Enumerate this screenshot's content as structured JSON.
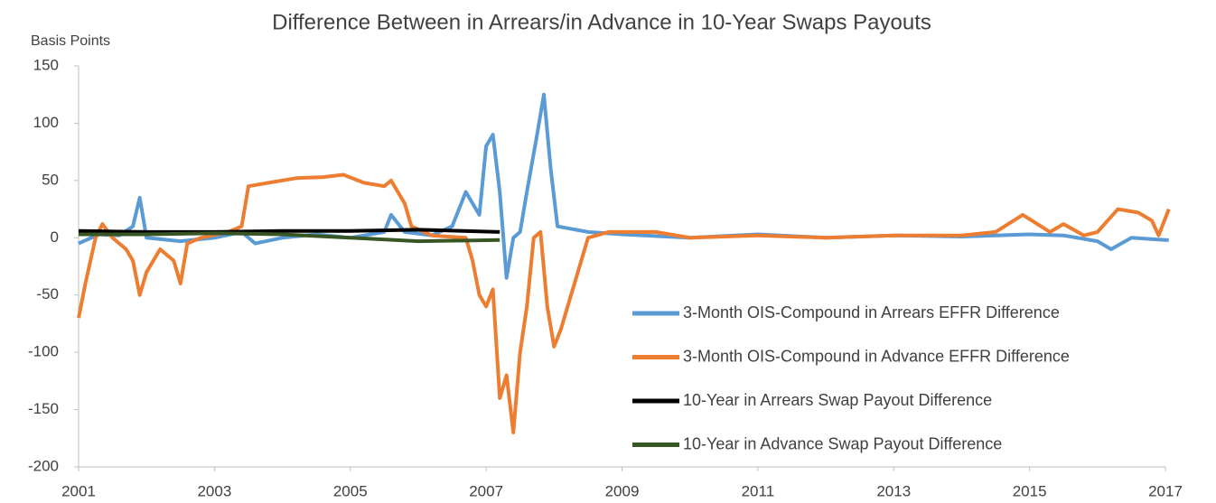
{
  "chart_data": {
    "type": "line",
    "title": "Difference Between in Arrears/in Advance in 10-Year Swaps Payouts",
    "y_label": "Basis Points",
    "xlim": [
      2001,
      2017
    ],
    "xticks": [
      2001,
      2003,
      2005,
      2007,
      2009,
      2011,
      2013,
      2015,
      2017
    ],
    "ylim": [
      -200,
      150
    ],
    "yticks": [
      -200,
      -150,
      -100,
      -50,
      0,
      50,
      100,
      150
    ],
    "grid": false,
    "legend": "lower right",
    "series": [
      {
        "name": "3-Month OIS-Compound in Arrears EFFR Difference",
        "color": "#5b9bd5",
        "x": [
          2001.0,
          2001.3,
          2001.6,
          2001.8,
          2001.9,
          2002.0,
          2002.5,
          2003.0,
          2003.4,
          2003.6,
          2004.0,
          2004.5,
          2005.0,
          2005.5,
          2005.6,
          2005.8,
          2006.2,
          2006.5,
          2006.7,
          2006.9,
          2007.0,
          2007.1,
          2007.2,
          2007.3,
          2007.4,
          2007.5,
          2007.6,
          2007.75,
          2007.85,
          2007.95,
          2008.05,
          2008.5,
          2009.0,
          2010.0,
          2011.0,
          2012.0,
          2013.0,
          2014.0,
          2015.0,
          2015.5,
          2016.0,
          2016.2,
          2016.5,
          2017.0,
          2017.05
        ],
        "values": [
          -5,
          3,
          2,
          10,
          35,
          0,
          -3,
          0,
          5,
          -5,
          0,
          3,
          0,
          5,
          20,
          5,
          2,
          10,
          40,
          20,
          80,
          90,
          40,
          -35,
          0,
          5,
          40,
          90,
          125,
          60,
          10,
          5,
          3,
          0,
          3,
          0,
          2,
          1,
          3,
          2,
          -3,
          -10,
          0,
          -2,
          -2
        ]
      },
      {
        "name": "3-Month OIS-Compound in Advance EFFR Difference",
        "color": "#ed7d31",
        "x": [
          2001.0,
          2001.1,
          2001.25,
          2001.35,
          2001.5,
          2001.7,
          2001.8,
          2001.9,
          2002.0,
          2002.2,
          2002.4,
          2002.5,
          2002.6,
          2002.8,
          2003.2,
          2003.4,
          2003.5,
          2003.8,
          2004.2,
          2004.6,
          2004.9,
          2005.2,
          2005.5,
          2005.6,
          2005.8,
          2005.9,
          2006.2,
          2006.7,
          2006.8,
          2006.9,
          2007.0,
          2007.1,
          2007.2,
          2007.3,
          2007.4,
          2007.5,
          2007.6,
          2007.7,
          2007.8,
          2007.9,
          2008.0,
          2008.1,
          2008.3,
          2008.5,
          2008.8,
          2009.5,
          2010.0,
          2011.0,
          2012.0,
          2013.0,
          2014.0,
          2014.5,
          2014.9,
          2015.3,
          2015.5,
          2015.8,
          2016.0,
          2016.3,
          2016.6,
          2016.8,
          2016.9,
          2017.05
        ],
        "values": [
          -70,
          -40,
          0,
          12,
          0,
          -10,
          -20,
          -50,
          -30,
          -10,
          -20,
          -40,
          -5,
          0,
          5,
          10,
          45,
          48,
          52,
          53,
          55,
          48,
          45,
          50,
          30,
          10,
          2,
          0,
          -20,
          -50,
          -60,
          -45,
          -140,
          -120,
          -170,
          -100,
          -60,
          0,
          5,
          -60,
          -95,
          -80,
          -40,
          0,
          5,
          5,
          0,
          2,
          0,
          2,
          2,
          5,
          20,
          5,
          12,
          2,
          5,
          25,
          22,
          15,
          2,
          25
        ]
      },
      {
        "name": "10-Year in Arrears Swap Payout Difference",
        "color": "#000000",
        "x": [
          2001.0,
          2002.0,
          2003.0,
          2004.0,
          2005.0,
          2006.0,
          2007.2
        ],
        "values": [
          6,
          5,
          5,
          6,
          6,
          7,
          5
        ]
      },
      {
        "name": "10-Year in Advance Swap Payout Difference",
        "color": "#375623",
        "x": [
          2001.0,
          2002.0,
          2003.0,
          2004.0,
          2005.0,
          2006.0,
          2007.2
        ],
        "values": [
          3,
          3,
          4,
          3,
          0,
          -3,
          -2
        ]
      }
    ]
  }
}
